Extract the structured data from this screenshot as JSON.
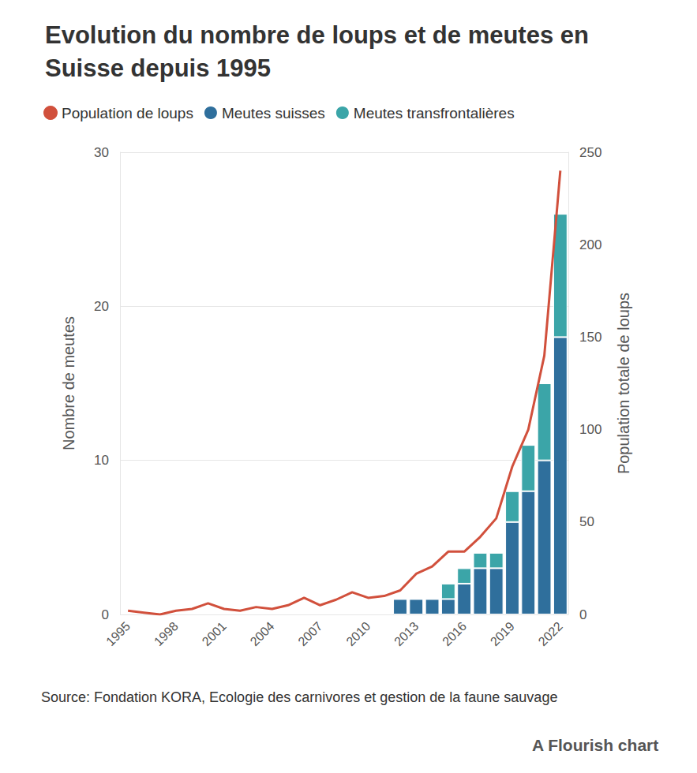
{
  "chart_data": {
    "type": "bar",
    "title": "Evolution du nombre de loups et de meutes en Suisse depuis 1995",
    "source": "Source: Fondation KORA, Ecologie des carnivores et gestion de la faune sauvage",
    "credit": "A Flourish chart",
    "y_label": "Nombre de meutes",
    "y2_label": "Population totale de loups",
    "categories": [
      "1995",
      null,
      null,
      "1998",
      null,
      null,
      "2001",
      null,
      null,
      "2004",
      null,
      null,
      "2007",
      null,
      null,
      "2010",
      null,
      null,
      "2013",
      null,
      null,
      "2016",
      null,
      null,
      "2019",
      null,
      null,
      "2022"
    ],
    "series": [
      {
        "name": "Population de loups",
        "type": "line",
        "axis": "y2",
        "color": "#d1503c",
        "values": [
          2,
          1,
          0,
          2,
          3,
          6,
          3,
          2,
          4,
          3,
          5,
          9,
          5,
          8,
          12,
          9,
          10,
          13,
          22,
          26,
          34,
          34,
          42,
          52,
          80,
          100,
          140,
          240
        ]
      },
      {
        "name": "Meutes suisses",
        "type": "bar",
        "color": "#2f6f9c",
        "values": [
          null,
          null,
          null,
          null,
          null,
          null,
          null,
          null,
          null,
          null,
          null,
          null,
          null,
          null,
          null,
          null,
          null,
          1,
          1,
          1,
          1,
          2,
          3,
          3,
          6,
          8,
          10,
          18
        ]
      },
      {
        "name": "Meutes transfrontalières",
        "type": "bar",
        "color": "#3ba5a8",
        "values": [
          null,
          null,
          null,
          null,
          null,
          null,
          null,
          null,
          null,
          null,
          null,
          null,
          null,
          null,
          null,
          null,
          null,
          null,
          null,
          null,
          1,
          1,
          1,
          1,
          2,
          3,
          5,
          8
        ]
      }
    ],
    "stacked": true,
    "ylim": [
      0,
      30
    ],
    "yticks": [
      0,
      10,
      20,
      30
    ],
    "y2lim": [
      0,
      250
    ],
    "y2ticks": [
      0,
      50,
      100,
      150,
      200,
      250
    ],
    "grid": true,
    "legend": "top-left"
  }
}
